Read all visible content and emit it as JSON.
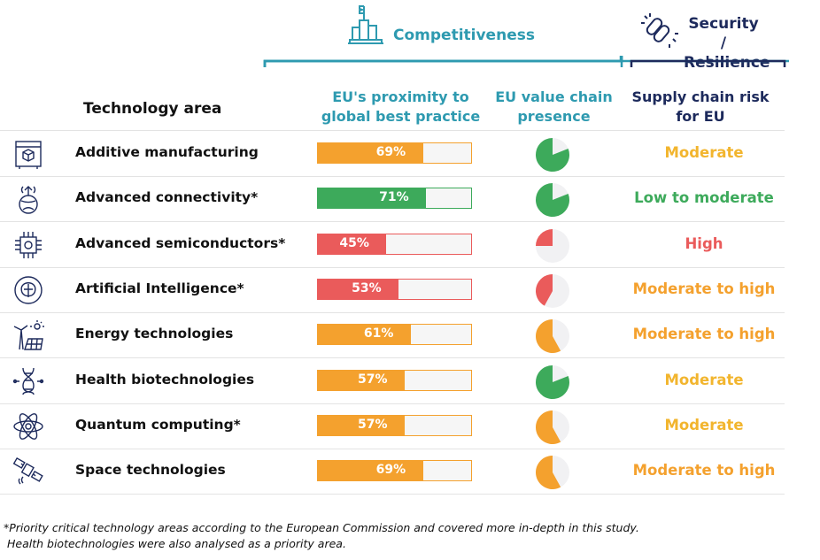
{
  "colors": {
    "orange": "#f4a12e",
    "green": "#3daa5b",
    "red": "#ea5b5b",
    "teal": "#2e9ab0",
    "navy": "#1d2a5c",
    "pie_bg": "#f1f1f3"
  },
  "groups": {
    "competitiveness": "Competitiveness",
    "security": "Security /",
    "resilience": "Resilience"
  },
  "headers": {
    "technology": "Technology area",
    "proximity_1": "EU's proximity to",
    "proximity_2": "global best practice",
    "presence_1": "EU value chain",
    "presence_2": "presence",
    "risk_1": "Supply chain risk",
    "risk_2": "for EU"
  },
  "chart_data": {
    "type": "table",
    "columns": [
      "Technology area",
      "EU's proximity to global best practice",
      "EU value chain presence",
      "Supply chain risk for EU"
    ],
    "rows": [
      {
        "name": "Additive manufacturing",
        "icon": "3d-printer-icon",
        "proximity": 69,
        "proximity_label": "69%",
        "color": "orange",
        "presence": 0.81,
        "presence_color": "green",
        "risk": "Moderate",
        "risk_color": "#f2b52e"
      },
      {
        "name": "Advanced connectivity*",
        "icon": "antenna-globe-icon",
        "proximity": 71,
        "proximity_label": "71%",
        "color": "green",
        "presence": 0.81,
        "presence_color": "green",
        "risk": "Low to moderate",
        "risk_color": "#3daa5b"
      },
      {
        "name": "Advanced semiconductors*",
        "icon": "chip-icon",
        "proximity": 45,
        "proximity_label": "45%",
        "color": "red",
        "presence": 0.25,
        "presence_color": "red",
        "risk": "High",
        "risk_color": "#ea5b5b"
      },
      {
        "name": "Artificial Intelligence*",
        "icon": "brain-icon",
        "proximity": 53,
        "proximity_label": "53%",
        "color": "red",
        "presence": 0.42,
        "presence_color": "red",
        "risk": "Moderate to high",
        "risk_color": "#f4a12e"
      },
      {
        "name": "Energy technologies",
        "icon": "wind-solar-icon",
        "proximity": 61,
        "proximity_label": "61%",
        "color": "orange",
        "presence": 0.58,
        "presence_color": "orange",
        "risk": "Moderate to high",
        "risk_color": "#f4a12e"
      },
      {
        "name": "Health biotechnologies",
        "icon": "dna-icon",
        "proximity": 57,
        "proximity_label": "57%",
        "color": "orange",
        "presence": 0.81,
        "presence_color": "green",
        "risk": "Moderate",
        "risk_color": "#f2b52e"
      },
      {
        "name": "Quantum computing*",
        "icon": "atom-icon",
        "proximity": 57,
        "proximity_label": "57%",
        "color": "orange",
        "presence": 0.58,
        "presence_color": "orange",
        "risk": "Moderate",
        "risk_color": "#f2b52e"
      },
      {
        "name": "Space technologies",
        "icon": "satellite-icon",
        "proximity": 69,
        "proximity_label": "69%",
        "color": "orange",
        "presence": 0.58,
        "presence_color": "orange",
        "risk": "Moderate to high",
        "risk_color": "#f4a12e"
      }
    ]
  },
  "footnote": {
    "line1": "*Priority critical technology areas according to the European Commission and covered more in-depth in this study.",
    "line2": "Health biotechnologies were also analysed as a priority area."
  }
}
